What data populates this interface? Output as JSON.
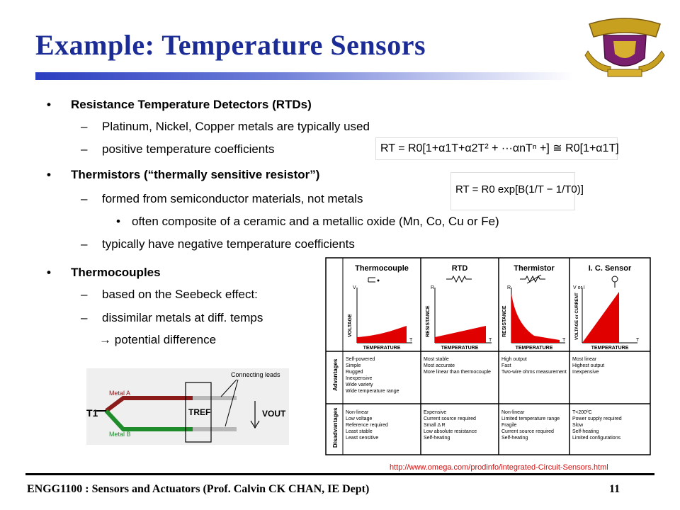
{
  "title": "Example: Temperature Sensors",
  "colors": {
    "title": "#1c2c96",
    "red": "#e00000",
    "metal_a": "#8b1a1a",
    "metal_b": "#1e8c2a"
  },
  "sections": {
    "rtd": {
      "heading": "Resistance Temperature Detectors (RTDs)",
      "items": [
        "Platinum, Nickel, Copper metals are typically used",
        "positive temperature coefficients"
      ]
    },
    "thermistors": {
      "heading": "Thermistors (“thermally sensitive resistor”)",
      "item1": "formed from semiconductor materials, not metals",
      "sub1": "often composite of a ceramic and a metallic oxide (Mn, Co, Cu or Fe)",
      "item2": "typically have negative temperature coefficients"
    },
    "thermocouples": {
      "heading": "Thermocouples",
      "items": [
        "based on the Seebeck effect:",
        "dissimilar metals at diff. temps"
      ],
      "result": "potential difference",
      "arrow": "→"
    }
  },
  "equations": {
    "rtd": "RT = R0[1+α1T+α2T² + ···αnTⁿ +] ≅ R0[1+α1T]",
    "thermistor": "RT = R0 exp[B(1/T − 1/T0)]"
  },
  "sensor_table": {
    "columns": [
      "Thermocouple",
      "RTD",
      "Thermistor",
      "I. C. Sensor"
    ],
    "y_axis": [
      "VOLTAGE",
      "RESISTANCE",
      "RESISTANCE",
      "VOLTAGE or CURRENT"
    ],
    "y_symbol": [
      "V",
      "R",
      "R",
      "V or I"
    ],
    "x_axis": "TEMPERATURE",
    "x_symbol": "T",
    "row_labels": [
      "Advantages",
      "Disadvantages"
    ],
    "advantages": [
      [
        "Self-powered",
        "Simple",
        "Rugged",
        "Inexpensive",
        "Wide variety",
        "Wide temperature range"
      ],
      [
        "Most stable",
        "Most accurate",
        "More linear than thermocouple"
      ],
      [
        "High output",
        "Fast",
        "Two-wire ohms measurement"
      ],
      [
        "Most linear",
        "Highest output",
        "Inexpensive"
      ]
    ],
    "disadvantages": [
      [
        "Non-linear",
        "Low voltage",
        "Reference required",
        "Least stable",
        "Least sensitive"
      ],
      [
        "Expensive",
        "Current source required",
        "Small Δ R",
        "Low absolute resistance",
        "Self-heating"
      ],
      [
        "Non-linear",
        "Limited temperature range",
        "Fragile",
        "Current source required",
        "Self-heating"
      ],
      [
        "T<200ºC",
        "Power supply required",
        "Slow",
        "Self-heating",
        "Limited configurations"
      ]
    ]
  },
  "circuit": {
    "metal_a": "Metal A",
    "metal_b": "Metal B",
    "t1": "T1",
    "tref": "TREF",
    "vout": "VOUT",
    "leads": "Connecting leads"
  },
  "url": "http://www.omega.com/prodinfo/integrated-Circuit-Sensors.html",
  "footer": "ENGG1100 : Sensors and Actuators (Prof. Calvin CK CHAN, IE Dept)",
  "page_number": "11"
}
